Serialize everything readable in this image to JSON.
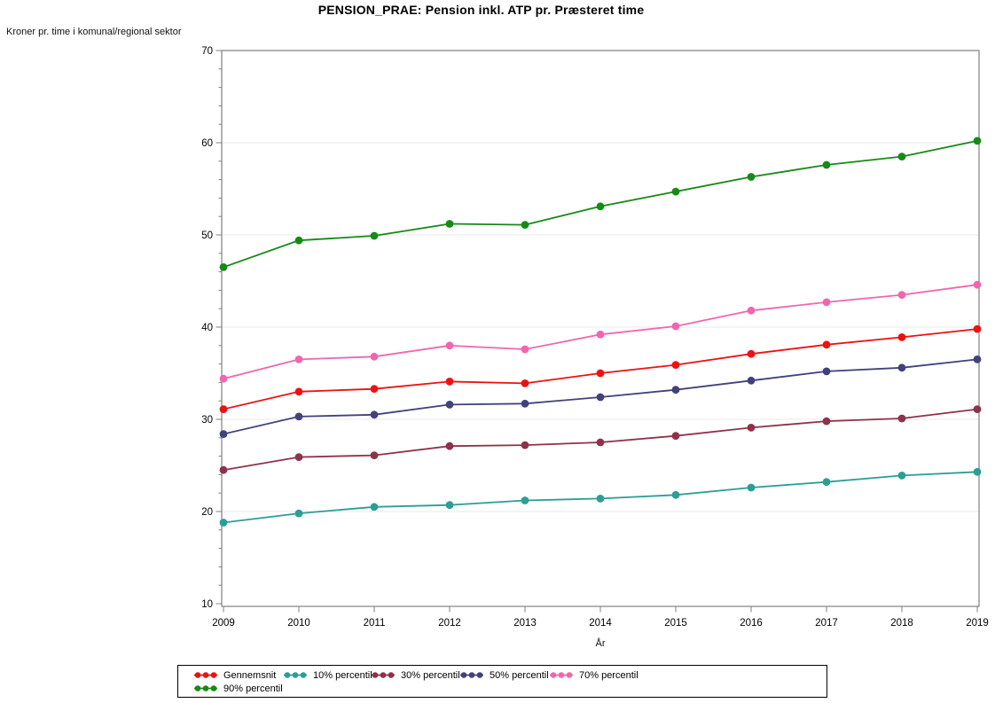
{
  "title": "PENSION_PRAE: Pension inkl. ATP pr. Præsteret time",
  "chart_data": {
    "type": "line",
    "title": "PENSION_PRAE: Pension inkl. ATP pr. Præsteret time",
    "xlabel": "År",
    "ylabel": "Kroner pr. time i komunal/regional sektor",
    "x": [
      2009,
      2010,
      2011,
      2012,
      2013,
      2014,
      2015,
      2016,
      2017,
      2018,
      2019
    ],
    "ylim": [
      10,
      70
    ],
    "ytick_step": 10,
    "yminor_step": 2,
    "grid": "horizontal gridlines at major y ticks",
    "legend_position": "bottom-left boxed, two rows",
    "marker": "filled-circle",
    "axis_color": "#808080",
    "gridline_color": "#E9E9E9",
    "text_color": "#000000",
    "series": [
      {
        "name": "Gennemsnit",
        "color": "#EE1111",
        "values": [
          31.1,
          33.0,
          33.3,
          34.1,
          33.9,
          35.0,
          35.9,
          37.1,
          38.1,
          38.9,
          39.8
        ]
      },
      {
        "name": "10% percentil",
        "color": "#2B9E96",
        "values": [
          18.8,
          19.8,
          20.5,
          20.7,
          21.2,
          21.4,
          21.8,
          22.6,
          23.2,
          23.9,
          24.3
        ]
      },
      {
        "name": "30% percentil",
        "color": "#8F3149",
        "values": [
          24.5,
          25.9,
          26.1,
          27.1,
          27.2,
          27.5,
          28.2,
          29.1,
          29.8,
          30.1,
          31.1
        ]
      },
      {
        "name": "50% percentil",
        "color": "#41417B",
        "values": [
          28.4,
          30.3,
          30.5,
          31.6,
          31.7,
          32.4,
          33.2,
          34.2,
          35.2,
          35.6,
          36.5
        ]
      },
      {
        "name": "70% percentil",
        "color": "#F066AE",
        "values": [
          34.4,
          36.5,
          36.8,
          38.0,
          37.6,
          39.2,
          40.1,
          41.8,
          42.7,
          43.5,
          44.6
        ]
      },
      {
        "name": "90% percentil",
        "color": "#168A16",
        "values": [
          46.5,
          49.4,
          49.9,
          51.2,
          51.1,
          53.1,
          54.7,
          56.3,
          57.6,
          58.5,
          60.2
        ]
      }
    ]
  }
}
